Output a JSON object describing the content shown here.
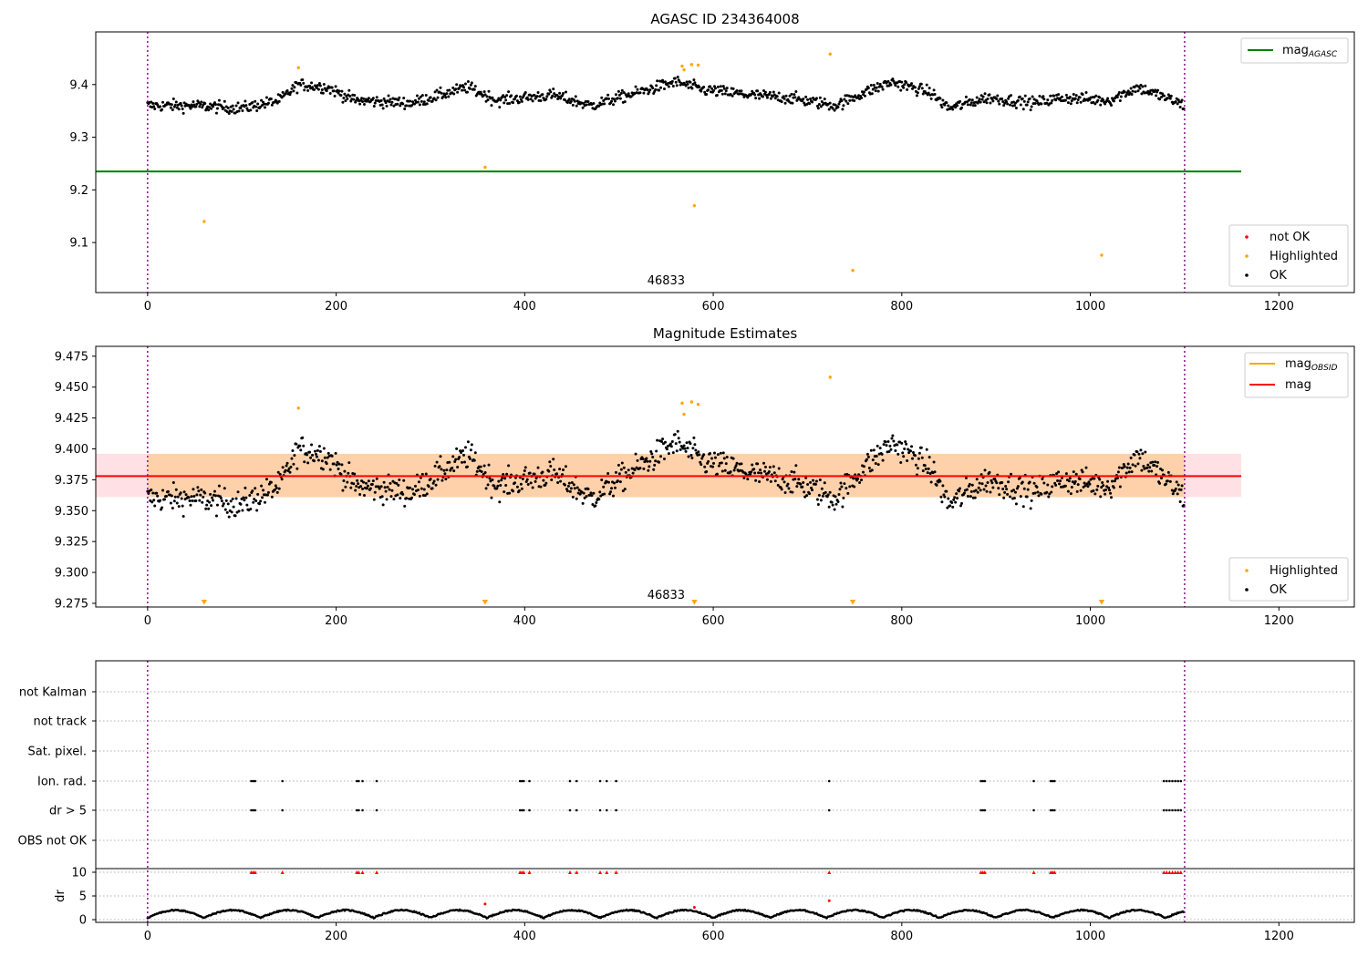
{
  "chart_data": [
    {
      "type": "scatter",
      "title": "AGASC ID 234364008",
      "xlim": [
        -55,
        1280
      ],
      "ylim": [
        9.005,
        9.5
      ],
      "xticks": [
        0,
        200,
        400,
        600,
        800,
        1000,
        1200
      ],
      "yticks": [
        9.1,
        9.2,
        9.3,
        9.4
      ],
      "vlines": [
        0,
        1100
      ],
      "obsid_label": "46833",
      "obsid_label_x": 550,
      "lines": [
        {
          "name": "mag_AGASC",
          "label_main": "mag",
          "label_sub": "AGASC",
          "y": 9.235,
          "x0": -55,
          "x1": 1160,
          "color": "#008000"
        }
      ],
      "highlighted_points": [
        {
          "x": 60,
          "y": 9.14
        },
        {
          "x": 160,
          "y": 9.432
        },
        {
          "x": 358,
          "y": 9.243
        },
        {
          "x": 567,
          "y": 9.435
        },
        {
          "x": 569,
          "y": 9.428
        },
        {
          "x": 577,
          "y": 9.438
        },
        {
          "x": 580,
          "y": 9.17
        },
        {
          "x": 584,
          "y": 9.437
        },
        {
          "x": 724,
          "y": 9.458
        },
        {
          "x": 748,
          "y": 9.047
        },
        {
          "x": 1012,
          "y": 9.076
        }
      ],
      "legend": [
        {
          "label": "not OK",
          "color": "#ff0000"
        },
        {
          "label": "Highlighted",
          "color": "#ffa500"
        },
        {
          "label": "OK",
          "color": "#000000"
        }
      ]
    },
    {
      "type": "scatter",
      "title": "Magnitude Estimates",
      "xlim": [
        -55,
        1280
      ],
      "ylim": [
        9.272,
        9.483
      ],
      "xticks": [
        0,
        200,
        400,
        600,
        800,
        1000,
        1200
      ],
      "yticks": [
        9.275,
        9.3,
        9.325,
        9.35,
        9.375,
        9.4,
        9.425,
        9.45,
        9.475
      ],
      "vlines": [
        0,
        1100
      ],
      "obsid_label": "46833",
      "obsid_label_x": 550,
      "mean_mag": 9.378,
      "band_obsid": [
        9.361,
        9.396
      ],
      "band_agasc": [
        9.361,
        9.396
      ],
      "band_x": [
        -55,
        1160
      ],
      "highlighted_points": [
        {
          "x": 160,
          "y": 9.433
        },
        {
          "x": 567,
          "y": 9.437
        },
        {
          "x": 569,
          "y": 9.428
        },
        {
          "x": 577,
          "y": 9.438
        },
        {
          "x": 584,
          "y": 9.436
        },
        {
          "x": 724,
          "y": 9.458
        }
      ],
      "out_of_range_markers": [
        60,
        358,
        580,
        748,
        1012
      ],
      "legend_lines": [
        {
          "label_main": "mag",
          "label_sub": "OBSID",
          "color": "#ffa500"
        },
        {
          "label_main": "mag",
          "label_sub": "",
          "color": "#ff0000"
        }
      ],
      "legend": [
        {
          "label": "Highlighted",
          "color": "#ffa500"
        },
        {
          "label": "OK",
          "color": "#000000"
        }
      ]
    },
    {
      "type": "scatter",
      "title": "",
      "xlim": [
        -55,
        1280
      ],
      "xticks": [
        0,
        200,
        400,
        600,
        800,
        1000,
        1200
      ],
      "vlines": [
        0,
        1100
      ],
      "flag_rows": [
        "not Kalman",
        "not track",
        "Sat. pixel.",
        "Ion. rad.",
        "dr > 5",
        "OBS not OK"
      ],
      "flag_x": [
        110,
        112,
        114,
        143,
        222,
        224,
        228,
        243,
        395,
        397,
        399,
        405,
        448,
        455,
        480,
        487,
        497,
        723,
        884,
        886,
        888,
        940,
        958,
        960,
        962,
        1078,
        1081,
        1084,
        1087,
        1090,
        1093,
        1096
      ],
      "dr_ylim": [
        -0.5,
        10.8
      ],
      "dr_yticks": [
        0,
        5,
        10
      ],
      "dr_ylabel": "dr",
      "dr_threshold": 10,
      "dr_outliers": [
        {
          "x": 358,
          "y": 3.3
        },
        {
          "x": 580,
          "y": 2.6
        },
        {
          "x": 723,
          "y": 4.0
        }
      ]
    }
  ]
}
